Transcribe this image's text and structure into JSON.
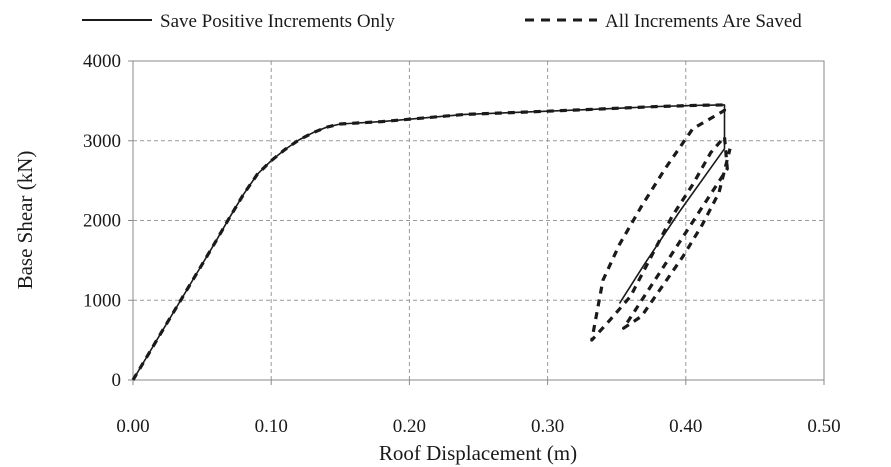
{
  "chart_data": {
    "type": "line",
    "title": "",
    "xlabel": "Roof Displacement (m)",
    "ylabel": "Base Shear (kN)",
    "xlim": [
      0,
      0.5
    ],
    "ylim": [
      0,
      4000
    ],
    "grid": true,
    "legend_position": "top",
    "x_ticks": [
      "0.00",
      "0.10",
      "0.20",
      "0.30",
      "0.40",
      "0.50"
    ],
    "y_ticks": [
      "0",
      "1000",
      "2000",
      "3000",
      "4000"
    ],
    "series": [
      {
        "name": "Save Positive Increments Only",
        "style": "solid",
        "color": "#1a1a1a",
        "points": [
          [
            0.0,
            0
          ],
          [
            0.01,
            290
          ],
          [
            0.02,
            580
          ],
          [
            0.03,
            870
          ],
          [
            0.04,
            1160
          ],
          [
            0.05,
            1450
          ],
          [
            0.06,
            1740
          ],
          [
            0.07,
            2040
          ],
          [
            0.08,
            2330
          ],
          [
            0.09,
            2580
          ],
          [
            0.1,
            2750
          ],
          [
            0.11,
            2890
          ],
          [
            0.12,
            3010
          ],
          [
            0.13,
            3100
          ],
          [
            0.14,
            3170
          ],
          [
            0.15,
            3210
          ],
          [
            0.18,
            3240
          ],
          [
            0.2,
            3270
          ],
          [
            0.24,
            3330
          ],
          [
            0.3,
            3370
          ],
          [
            0.34,
            3400
          ],
          [
            0.38,
            3430
          ],
          [
            0.41,
            3445
          ],
          [
            0.428,
            3450
          ],
          [
            0.428,
            2900
          ],
          [
            0.395,
            2100
          ],
          [
            0.37,
            1450
          ],
          [
            0.352,
            960
          ]
        ]
      },
      {
        "name": "All Increments Are Saved",
        "style": "dashed",
        "color": "#1a1a1a",
        "points": [
          [
            0.0,
            0
          ],
          [
            0.01,
            290
          ],
          [
            0.02,
            580
          ],
          [
            0.03,
            870
          ],
          [
            0.04,
            1160
          ],
          [
            0.05,
            1450
          ],
          [
            0.06,
            1740
          ],
          [
            0.07,
            2040
          ],
          [
            0.08,
            2330
          ],
          [
            0.09,
            2580
          ],
          [
            0.1,
            2750
          ],
          [
            0.11,
            2890
          ],
          [
            0.12,
            3010
          ],
          [
            0.13,
            3100
          ],
          [
            0.14,
            3170
          ],
          [
            0.15,
            3210
          ],
          [
            0.18,
            3240
          ],
          [
            0.2,
            3270
          ],
          [
            0.24,
            3330
          ],
          [
            0.3,
            3370
          ],
          [
            0.34,
            3400
          ],
          [
            0.38,
            3430
          ],
          [
            0.41,
            3445
          ],
          [
            0.428,
            3450
          ],
          [
            0.428,
            3380
          ],
          [
            0.405,
            3150
          ],
          [
            0.385,
            2650
          ],
          [
            0.368,
            2180
          ],
          [
            0.352,
            1700
          ],
          [
            0.34,
            1250
          ],
          [
            0.332,
            500
          ],
          [
            0.345,
            750
          ],
          [
            0.36,
            1050
          ],
          [
            0.375,
            1550
          ],
          [
            0.39,
            2050
          ],
          [
            0.405,
            2450
          ],
          [
            0.418,
            2850
          ],
          [
            0.428,
            3050
          ],
          [
            0.43,
            2650
          ],
          [
            0.415,
            2250
          ],
          [
            0.4,
            1850
          ],
          [
            0.385,
            1450
          ],
          [
            0.37,
            1050
          ],
          [
            0.355,
            650
          ],
          [
            0.368,
            800
          ],
          [
            0.382,
            1150
          ],
          [
            0.398,
            1550
          ],
          [
            0.412,
            1950
          ],
          [
            0.424,
            2350
          ],
          [
            0.432,
            2900
          ]
        ]
      }
    ]
  }
}
